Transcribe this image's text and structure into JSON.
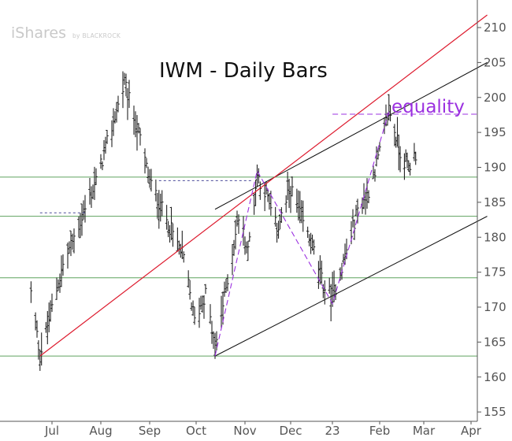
{
  "chart_data": {
    "type": "ohlc",
    "title": "IWM - Daily Bars",
    "logo": {
      "brand": "iShares",
      "by": "by BLACKROCK"
    },
    "annotation": "equality",
    "y_ticks": [
      155,
      160,
      165,
      170,
      175,
      180,
      185,
      190,
      195,
      200,
      205,
      210
    ],
    "ylim": [
      155,
      213
    ],
    "x_labels": [
      "Jul",
      "Aug",
      "Sep",
      "Oct",
      "Nov",
      "Dec",
      "23",
      "Feb",
      "Mar",
      "Apr"
    ],
    "horizontal_levels": [
      188.6,
      183,
      174.2,
      163
    ],
    "anchors": [
      [
        "2022-06-17",
        172
      ],
      [
        "2022-06-23",
        163
      ],
      [
        "2022-07-08",
        176
      ],
      [
        "2022-07-29",
        188
      ],
      [
        "2022-08-16",
        202
      ],
      [
        "2022-08-26",
        194
      ],
      [
        "2022-09-01",
        188
      ],
      [
        "2022-09-13",
        182
      ],
      [
        "2022-09-23",
        177
      ],
      [
        "2022-09-30",
        168
      ],
      [
        "2022-10-07",
        172
      ],
      [
        "2022-10-13",
        164
      ],
      [
        "2022-10-28",
        183
      ],
      [
        "2022-11-03",
        178
      ],
      [
        "2022-11-09",
        189
      ],
      [
        "2022-11-15",
        186
      ],
      [
        "2022-11-22",
        181
      ],
      [
        "2022-12-01",
        187
      ],
      [
        "2022-12-09",
        182
      ],
      [
        "2022-12-16",
        178
      ],
      [
        "2022-12-22",
        173
      ],
      [
        "2022-12-28",
        171.5
      ],
      [
        "2023-01-06",
        178
      ],
      [
        "2023-01-13",
        184
      ],
      [
        "2023-01-19",
        186
      ],
      [
        "2023-01-27",
        192
      ],
      [
        "2023-02-02",
        198.5
      ],
      [
        "2023-02-10",
        192
      ],
      [
        "2023-02-16",
        190
      ],
      [
        "2023-02-21",
        192
      ]
    ],
    "purple_path": [
      [
        "2022-10-13",
        163
      ],
      [
        "2022-11-09",
        189.5
      ],
      [
        "2022-12-28",
        170.5
      ],
      [
        "2023-02-02",
        198
      ]
    ],
    "equality_level": 197.6,
    "trendlines": {
      "red": [
        [
          "2022-06-23",
          163
        ],
        [
          "2023-04-12",
          211.8
        ]
      ],
      "black_upper": [
        [
          "2022-10-13",
          184
        ],
        [
          "2023-04-12",
          205
        ]
      ],
      "black_lower": [
        [
          "2022-10-13",
          163
        ],
        [
          "2023-04-12",
          183
        ]
      ],
      "dashed_segments": [
        [
          [
            "2022-06-23",
            183.5
          ],
          [
            "2022-07-22",
            183.5
          ]
        ],
        [
          [
            "2022-09-07",
            188.1
          ],
          [
            "2022-11-05",
            188.1
          ]
        ]
      ]
    },
    "colors": {
      "bars": "#222222",
      "green": "#5fa35f",
      "red": "#dd1a2d",
      "purple": "#9b30e0",
      "dashed_ref": "#4a4a99",
      "axis": "#555555"
    }
  }
}
